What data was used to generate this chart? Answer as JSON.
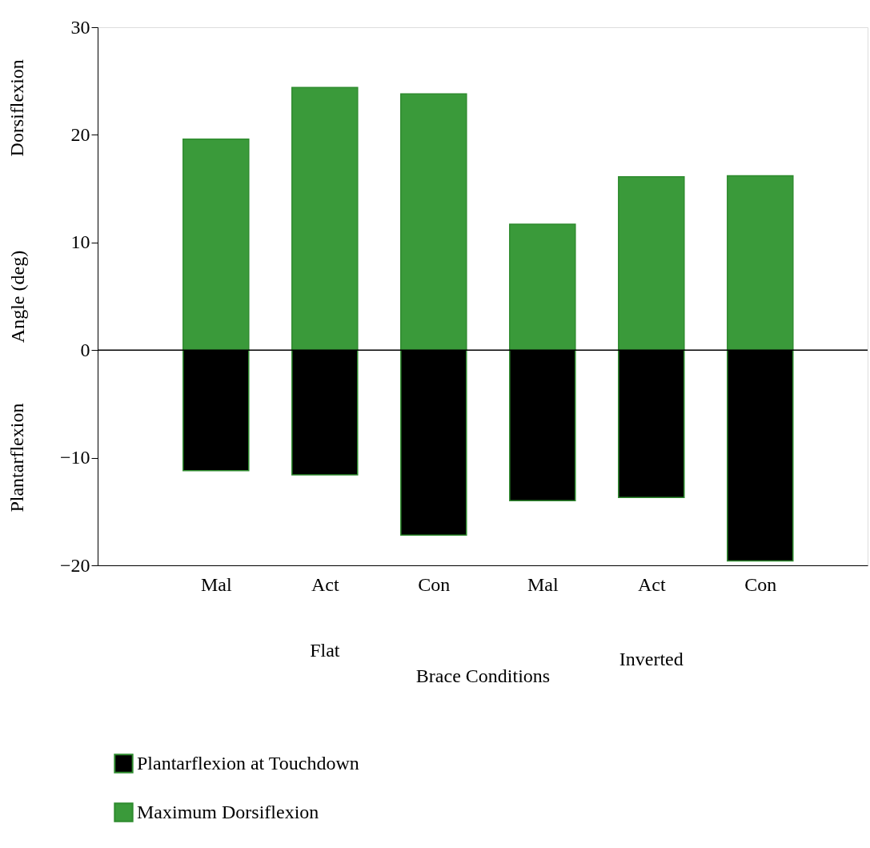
{
  "chart_data": {
    "type": "bar",
    "xlabel": "Brace Conditions",
    "ylabel": "Angle (deg)",
    "categories": [
      "Mal",
      "Act",
      "Con",
      "Mal",
      "Act",
      "Con"
    ],
    "series": [
      {
        "name": "Plantarflexion at Touchdown",
        "color": "#000000",
        "values": [
          -11.2,
          -11.6,
          -17.2,
          -14.0,
          -13.7,
          -19.6
        ]
      },
      {
        "name": "Maximum Dorsiflexion",
        "color": "#3a9a3a",
        "values": [
          19.6,
          24.4,
          23.8,
          11.7,
          16.1,
          16.2
        ]
      }
    ],
    "ylim": [
      -20,
      30
    ],
    "yticks": [
      -20,
      -10,
      0,
      10,
      20,
      30
    ],
    "ref_lines": [
      {
        "axis": "y",
        "value": 0
      }
    ],
    "annotations": [
      "Dorsiflexion",
      "Plantarflexion",
      "Flat",
      "Inverted"
    ],
    "stacked": true,
    "grid": false,
    "legend": "bottom left"
  }
}
